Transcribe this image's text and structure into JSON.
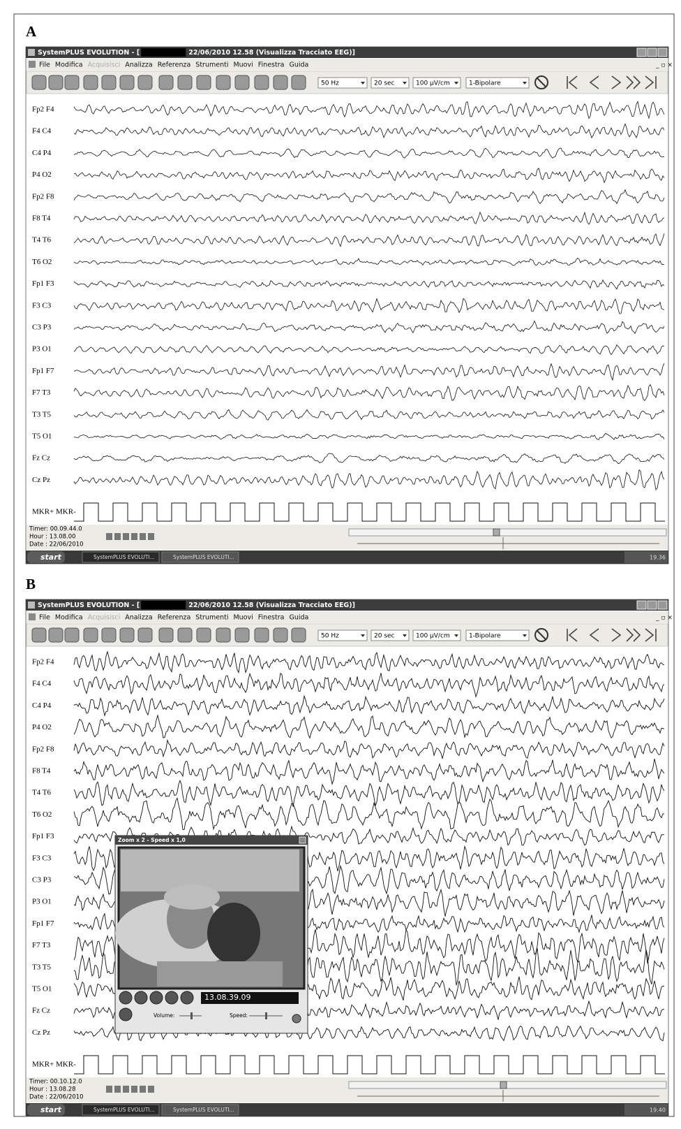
{
  "panels": [
    {
      "label": "A",
      "title_prefix": "SystemPLUS EVOLUTION - [",
      "title_suffix": "22/06/2010 12.58 (Visualizza Tracciato EEG)]",
      "menu": [
        "File",
        "Modifica",
        "Acquisisci",
        "Analizza",
        "Referenza",
        "Strumenti",
        "Muovi",
        "Finestra",
        "Guida"
      ],
      "toolbar": [
        "50 Hz",
        "20 sec",
        "100 µV/cm",
        "1-Bipolare"
      ],
      "channels": [
        "Fp2 F4",
        "F4 C4",
        "C4 P4",
        "P4 O2",
        "Fp2 F8",
        "F8 T4",
        "T4 T6",
        "T6 O2",
        "Fp1 F3",
        "F3 C3",
        "C3 P3",
        "P3 O1",
        "Fp1 F7",
        "F7 T3",
        "T3 T5",
        "T5 O1",
        "Fz Cz",
        "Cz Pz",
        "MKR+ MKR-"
      ],
      "status": [
        "Timer: 00.09.44.0",
        "Hour : 13.08.00",
        "Date : 22/06/2010"
      ],
      "taskbar": {
        "start": "start",
        "items": [
          "SystemPLUS EVOLUTI...",
          "SystemPLUS EVOLUTI..."
        ],
        "clock": "19.36"
      }
    },
    {
      "label": "B",
      "title_prefix": "SystemPLUS EVOLUTION - [",
      "title_suffix": "22/06/2010 12.58 (Visualizza Tracciato EEG)]",
      "menu": [
        "File",
        "Modifica",
        "Acquisisci",
        "Analizza",
        "Referenza",
        "Strumenti",
        "Muovi",
        "Finestra",
        "Guida"
      ],
      "toolbar": [
        "50 Hz",
        "20 sec",
        "100 µV/cm",
        "1-Bipolare"
      ],
      "channels": [
        "Fp2 F4",
        "F4 C4",
        "C4 P4",
        "P4 O2",
        "Fp2 F8",
        "F8 T4",
        "T4 T6",
        "T6 O2",
        "Fp1 F3",
        "F3 C3",
        "C3 P3",
        "P3 O1",
        "Fp1 F7",
        "F7 T3",
        "T3 T5",
        "T5 O1",
        "Fz Cz",
        "Cz Pz",
        "MKR+ MKR-"
      ],
      "status": [
        "Timer: 00.10.12.0",
        "Hour : 13.08.28",
        "Date : 22/06/2010"
      ],
      "taskbar": {
        "start": "start",
        "items": [
          "SystemPLUS EVOLUTI...",
          "SystemPLUS EVOLUTI..."
        ],
        "clock": "19.40"
      },
      "video": {
        "title": "Zoom x 2 - Speed x 1,0",
        "time": "13.08.39.09",
        "volume": "Volume:",
        "speed": "Speed:"
      }
    }
  ]
}
